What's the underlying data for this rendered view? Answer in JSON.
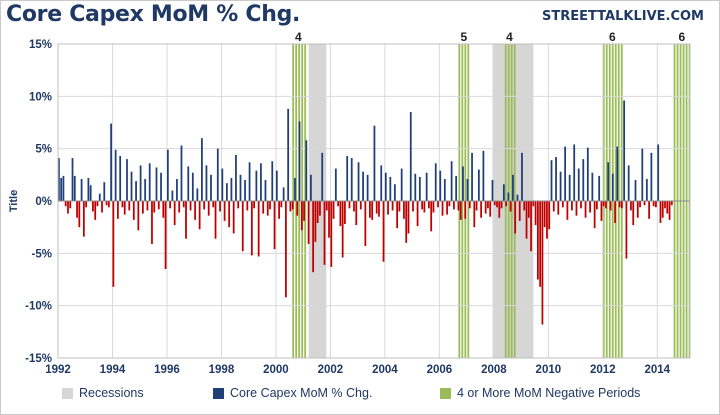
{
  "header": {
    "title": "Core Capex MoM % Chg.",
    "brand": "STREETTALKLIVE.COM"
  },
  "legend": {
    "recessions": "Recessions",
    "series": "Core Capex MoM % Chg.",
    "negative": "4 or More MoM Negative Periods"
  },
  "colors": {
    "positive": "#1f3f77",
    "negative": "#c00000",
    "recession": "#d6d6d6",
    "highlight": "#9bbb59",
    "grid": "#d9d9d9",
    "axis_text": "#1f3864"
  },
  "chart_data": {
    "type": "bar",
    "ylabel": "Title",
    "ylim": [
      -15,
      15
    ],
    "yticks": [
      -15,
      -10,
      -5,
      0,
      5,
      10,
      15
    ],
    "ytick_labels": [
      "-15%",
      "-10%",
      "-5%",
      "0%",
      "5%",
      "10%",
      "15%"
    ],
    "xlim": [
      1992,
      2015.2
    ],
    "xticks": [
      1992,
      1994,
      1996,
      1998,
      2000,
      2002,
      2004,
      2006,
      2008,
      2010,
      2012,
      2014
    ],
    "grid": true,
    "legend_position": "bottom",
    "recessions": [
      {
        "start": 2001.2,
        "end": 2001.85
      },
      {
        "start": 2007.95,
        "end": 2009.45
      }
    ],
    "negative_periods": [
      {
        "start": 2000.6,
        "end": 2001.05,
        "label": "4"
      },
      {
        "start": 2006.7,
        "end": 2007.1,
        "label": "5"
      },
      {
        "start": 2008.4,
        "end": 2008.75,
        "label": "4"
      },
      {
        "start": 2012.0,
        "end": 2012.7,
        "label": "6"
      },
      {
        "start": 2014.6,
        "end": 2015.2,
        "label": "6"
      }
    ],
    "series": [
      {
        "start": 1992.0,
        "step_months": 1,
        "values": [
          4.1,
          2.2,
          2.4,
          -0.5,
          -1.2,
          -0.7,
          4.1,
          2.4,
          -1.6,
          -2.5,
          2.1,
          -3.4,
          -0.6,
          2.2,
          1.5,
          -1.0,
          -1.8,
          -0.5,
          0.7,
          -1.1,
          1.8,
          -0.4,
          -0.6,
          7.4,
          -8.2,
          4.9,
          -1.7,
          4.3,
          -0.6,
          -1.3,
          4.0,
          -0.9,
          2.8,
          -1.8,
          1.9,
          -2.8,
          3.4,
          -1.2,
          2.1,
          -0.9,
          3.6,
          -4.1,
          -1.1,
          3.2,
          -0.8,
          2.7,
          -1.6,
          -6.5,
          4.9,
          -0.7,
          1.0,
          -2.3,
          2.1,
          -1.1,
          5.3,
          -0.6,
          -3.6,
          3.3,
          -0.9,
          2.7,
          -1.8,
          1.2,
          -2.7,
          6.0,
          -0.8,
          3.4,
          -1.4,
          2.5,
          -0.6,
          -3.6,
          5.0,
          -1.0,
          3.1,
          -1.9,
          1.7,
          -2.5,
          2.2,
          -3.1,
          4.4,
          -0.7,
          2.5,
          -4.8,
          2.0,
          -0.9,
          3.7,
          -5.2,
          -0.7,
          2.9,
          -5.3,
          3.6,
          -1.2,
          2.0,
          -1.4,
          -0.8,
          3.8,
          -4.6,
          2.9,
          -1.7,
          -0.6,
          1.3,
          -9.2,
          8.8,
          -1.0,
          -0.8,
          2.2,
          -1.4,
          7.6,
          -2.8,
          -1.9,
          5.8,
          -4.1,
          2.5,
          -6.8,
          -3.9,
          -2.1,
          -1.4,
          4.6,
          -6.1,
          -0.9,
          -3.5,
          -6.3,
          -1.7,
          3.1,
          -0.5,
          -2.4,
          -5.4,
          -2.2,
          4.3,
          -0.7,
          4.1,
          -1.0,
          -2.3,
          3.7,
          -0.8,
          2.8,
          -4.3,
          2.5,
          -1.6,
          -1.8,
          7.2,
          -1.2,
          -1.5,
          3.4,
          -5.8,
          2.7,
          -1.3,
          2.3,
          -0.9,
          1.6,
          -2.6,
          -1.0,
          3.1,
          -1.7,
          -4.0,
          -3.1,
          8.5,
          -1.0,
          2.6,
          -2.4,
          2.3,
          -0.8,
          -1.1,
          2.7,
          -0.7,
          -2.9,
          -1.1,
          3.6,
          -0.6,
          2.9,
          -1.4,
          2.1,
          -1.3,
          -0.5,
          3.8,
          -0.8,
          2.4,
          -0.9,
          -1.8,
          3.3,
          -1.7,
          2.1,
          -0.7,
          4.6,
          -2.5,
          -0.9,
          3.0,
          -1.6,
          4.8,
          -1.2,
          -0.7,
          -1.5,
          2.0,
          -0.4,
          -0.6,
          -1.6,
          -0.7,
          1.6,
          -0.5,
          0.8,
          -1.0,
          2.5,
          -3.1,
          0.6,
          -1.9,
          4.6,
          -0.9,
          -3.6,
          -1.6,
          -4.8,
          -0.5,
          -2.3,
          -7.5,
          -8.2,
          -11.8,
          -2.5,
          -3.6,
          -2.7,
          3.9,
          -1.0,
          4.2,
          -1.3,
          2.8,
          -0.6,
          5.2,
          -1.8,
          2.5,
          -0.9,
          5.4,
          -1.4,
          3.1,
          -0.7,
          4.0,
          -1.6,
          5.1,
          -1.1,
          2.7,
          -2.6,
          -0.8,
          2.4,
          -1.9,
          -0.5,
          -0.7,
          3.7,
          -0.9,
          2.6,
          -2.1,
          5.2,
          -0.6,
          -0.7,
          9.6,
          -5.5,
          3.4,
          -0.9,
          -2.3,
          2.0,
          -1.6,
          -0.6,
          5.0,
          -0.4,
          2.1,
          -1.7,
          4.6,
          -0.5,
          -0.6,
          5.4,
          -2.1,
          -1.6,
          -0.7,
          -1.2,
          -1.8,
          -0.4
        ]
      }
    ]
  }
}
